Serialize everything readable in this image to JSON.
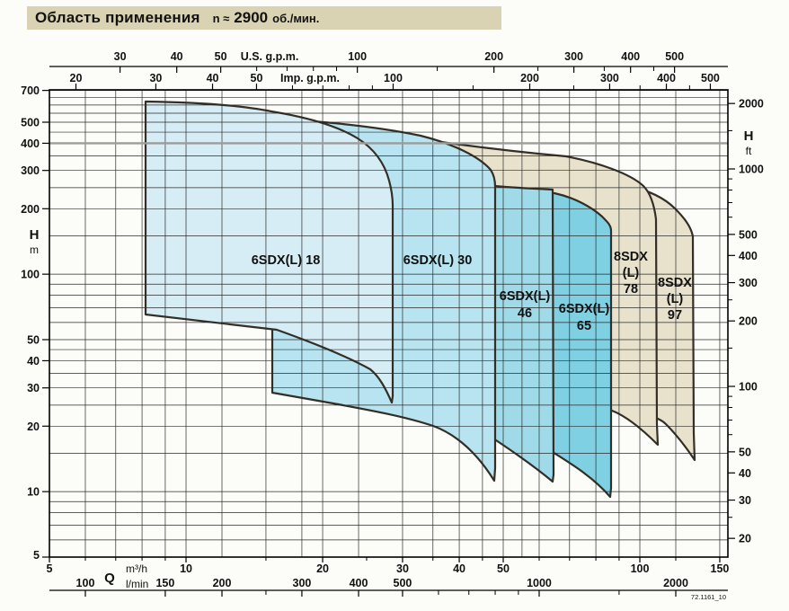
{
  "title": {
    "main": "Область применения",
    "rpm_prefix": "n ≈",
    "rpm_value": "2900",
    "rpm_unit": "об./мин."
  },
  "axes": {
    "top_us": {
      "label": "U.S. g.p.m.",
      "ticks": [
        "30",
        "40",
        "50",
        "100",
        "200",
        "300",
        "400",
        "500"
      ]
    },
    "top_imp": {
      "label": "Imp. g.p.m.",
      "ticks": [
        "20",
        "30",
        "40",
        "50",
        "100",
        "200",
        "300",
        "400",
        "500"
      ]
    },
    "left": {
      "label": "H",
      "unit": "m",
      "ticks": [
        "700",
        "500",
        "400",
        "300",
        "200",
        "100",
        "50",
        "40",
        "30",
        "20",
        "10",
        "5"
      ]
    },
    "right": {
      "label": "H",
      "unit": "ft",
      "ticks": [
        "2000",
        "1000",
        "500",
        "400",
        "300",
        "200",
        "100",
        "50",
        "40",
        "30",
        "20"
      ]
    },
    "bottom_m3h": {
      "label": "Q",
      "unit": "m³/h",
      "ticks": [
        "5",
        "10",
        "20",
        "30",
        "40",
        "50",
        "100",
        "150"
      ]
    },
    "bottom_lmin": {
      "unit": "l/min",
      "ticks": [
        "100",
        "150",
        "200",
        "300",
        "400",
        "500",
        "1000",
        "2000"
      ]
    }
  },
  "regions": [
    {
      "id": "6sdxl-18",
      "lines": [
        "6SDX(L) 18"
      ]
    },
    {
      "id": "6sdxl-30",
      "lines": [
        "6SDX(L) 30"
      ]
    },
    {
      "id": "6sdxl-46",
      "lines": [
        "6SDX(L)",
        "46"
      ]
    },
    {
      "id": "6sdxl-65",
      "lines": [
        "6SDX(L)",
        "65"
      ]
    },
    {
      "id": "8sdx-78",
      "lines": [
        "8SDX",
        "(L)",
        "78"
      ]
    },
    {
      "id": "8sdx-97",
      "lines": [
        "8SDX",
        "(L)",
        "97"
      ]
    }
  ],
  "footnote": "72.1161_10",
  "colors": {
    "title_bg": "#d9d3b4",
    "fill_18": "#d6edf5",
    "fill_30": "#b7e4f0",
    "fill_46": "#9edae8",
    "fill_65": "#7fd0e2",
    "fill_beige": "#e8e2cc",
    "outline": "#332f26",
    "grid": "#2a2a2a",
    "gray_line": "#9c9c9c"
  },
  "chart_data": {
    "type": "area",
    "title": "Область применения n ≈ 2900 об./мин.",
    "x_axis": {
      "label": "Q",
      "scale": "log",
      "primary_unit": "m³/h",
      "range": [
        5,
        160
      ],
      "secondary_units": [
        "l/min",
        "U.S. g.p.m.",
        "Imp. g.p.m."
      ]
    },
    "y_axis": {
      "label": "H",
      "scale": "log",
      "primary_unit": "m",
      "range": [
        5,
        700
      ],
      "secondary_units": [
        "ft"
      ],
      "highlighted_gridline_m": 400
    },
    "grid": true,
    "legend_position": "inside-regions",
    "series": [
      {
        "name": "6SDX(L) 18",
        "q_min_m3h": 8,
        "q_max_m3h": 28,
        "h_max_m": 620,
        "h_min_m": 26
      },
      {
        "name": "6SDX(L) 30",
        "q_min_m3h": 15.5,
        "q_max_m3h": 48,
        "h_max_m": 520,
        "h_min_m": 11
      },
      {
        "name": "6SDX(L) 46",
        "q_min_m3h": 29,
        "q_max_m3h": 64,
        "h_max_m": 250,
        "h_min_m": 11
      },
      {
        "name": "6SDX(L) 65",
        "q_min_m3h": 48,
        "q_max_m3h": 86,
        "h_max_m": 235,
        "h_min_m": 9.5
      },
      {
        "name": "8SDX (L) 78",
        "q_min_m3h": 64,
        "q_max_m3h": 110,
        "h_max_m": 450,
        "h_min_m": 16
      },
      {
        "name": "8SDX (L) 97",
        "q_min_m3h": 88,
        "q_max_m3h": 132,
        "h_max_m": 330,
        "h_min_m": 14
      }
    ]
  }
}
